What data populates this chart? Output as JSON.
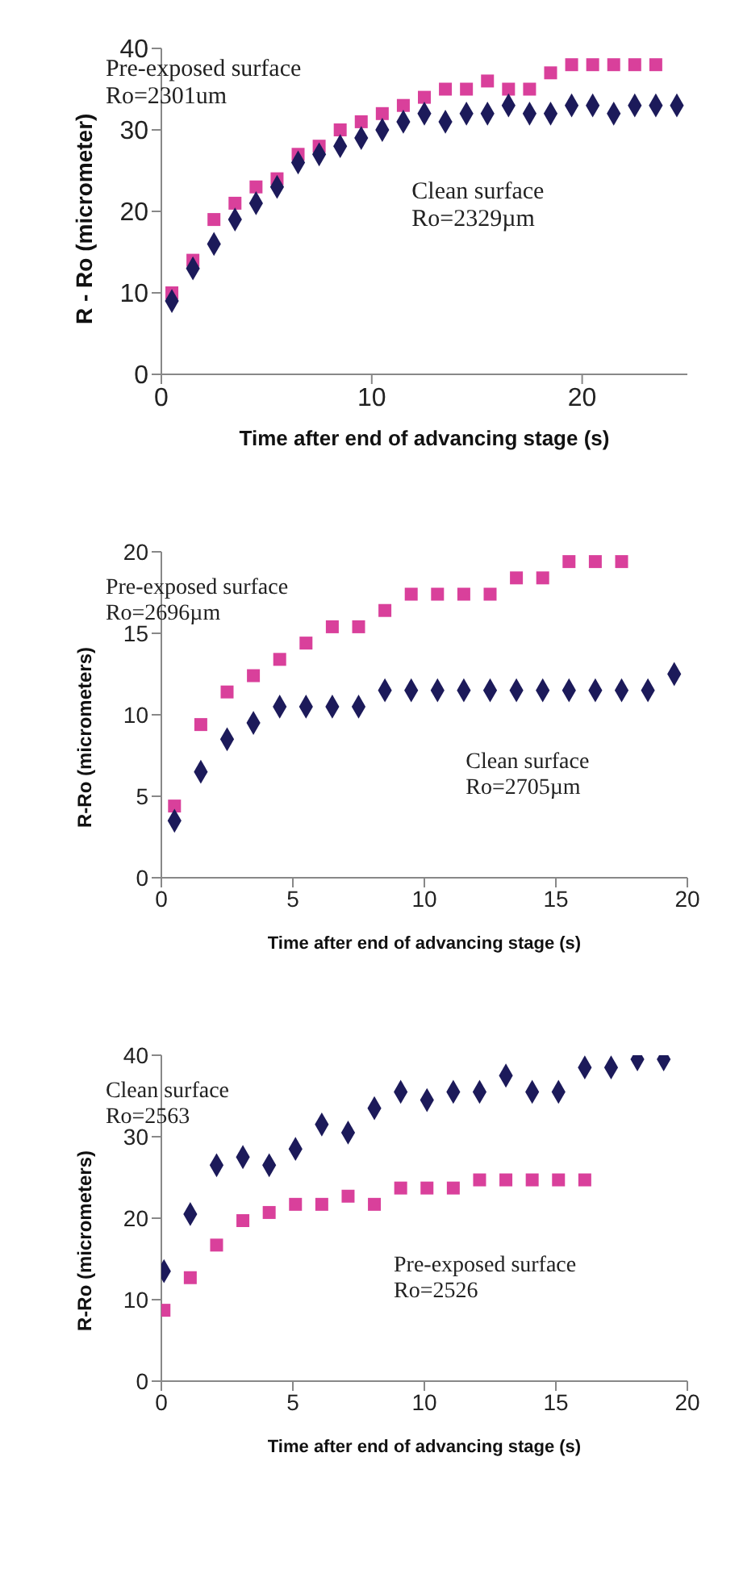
{
  "chart_data": [
    {
      "type": "scatter",
      "xlabel": "Time after end of advancing stage (s)",
      "ylabel": "R - Ro (micrometer)",
      "xlim": [
        0,
        25
      ],
      "xticks": [
        0,
        10,
        20
      ],
      "ylim": [
        0,
        40
      ],
      "yticks": [
        0,
        10,
        20,
        30,
        40
      ],
      "grid": false,
      "annotations": [
        "Ro=2301um",
        "Ro=2329µm"
      ],
      "series": [
        {
          "name": "Pre-exposed surface",
          "color": "#d9409b",
          "marker": "square",
          "x": [
            0.5,
            1.5,
            2.5,
            3.5,
            4.5,
            5.5,
            6.5,
            7.5,
            8.5,
            9.5,
            10.5,
            11.5,
            12.5,
            13.5,
            14.5,
            15.5,
            16.5,
            17.5,
            18.5,
            19.5,
            20.5,
            21.5,
            22.5,
            23.5
          ],
          "values": [
            10,
            14,
            19,
            21,
            23,
            24,
            27,
            28,
            30,
            31,
            32,
            33,
            34,
            35,
            35,
            36,
            35,
            35,
            37,
            38,
            38,
            38,
            38,
            38
          ]
        },
        {
          "name": "Clean surface",
          "color": "#1c1a5a",
          "marker": "diamond",
          "x": [
            0.5,
            1.5,
            2.5,
            3.5,
            4.5,
            5.5,
            6.5,
            7.5,
            8.5,
            9.5,
            10.5,
            11.5,
            12.5,
            13.5,
            14.5,
            15.5,
            16.5,
            17.5,
            18.5,
            19.5,
            20.5,
            21.5,
            22.5,
            23.5,
            24.5
          ],
          "values": [
            9,
            13,
            16,
            19,
            21,
            23,
            26,
            27,
            28,
            29,
            30,
            31,
            32,
            31,
            32,
            32,
            33,
            32,
            32,
            33,
            33,
            32,
            33,
            33,
            33
          ]
        }
      ]
    },
    {
      "type": "scatter",
      "xlabel": "Time after end of advancing stage (s)",
      "ylabel": "R-Ro (micrometers)",
      "xlim": [
        0,
        20
      ],
      "xticks": [
        0,
        5,
        10,
        15,
        20
      ],
      "ylim": [
        0,
        20
      ],
      "yticks": [
        0,
        5,
        10,
        15,
        20
      ],
      "grid": false,
      "annotations": [
        "Ro=2696µm",
        "Ro=2705µm"
      ],
      "series": [
        {
          "name": "Pre-exposed surface",
          "color": "#d9409b",
          "marker": "square",
          "x": [
            0.5,
            1.5,
            2.5,
            3.5,
            4.5,
            5.5,
            6.5,
            7.5,
            8.5,
            9.5,
            10.5,
            11.5,
            12.5,
            13.5,
            14.5,
            15.5,
            16.5,
            17.5
          ],
          "values": [
            4.4,
            9.4,
            11.4,
            12.4,
            13.4,
            14.4,
            15.4,
            15.4,
            16.4,
            17.4,
            17.4,
            17.4,
            17.4,
            18.4,
            18.4,
            19.4,
            19.4,
            19.4
          ]
        },
        {
          "name": "Clean surface",
          "color": "#1c1a5a",
          "marker": "diamond",
          "x": [
            0.5,
            1.5,
            2.5,
            3.5,
            4.5,
            5.5,
            6.5,
            7.5,
            8.5,
            9.5,
            10.5,
            11.5,
            12.5,
            13.5,
            14.5,
            15.5,
            16.5,
            17.5,
            18.5,
            19.5
          ],
          "values": [
            3.5,
            6.5,
            8.5,
            9.5,
            10.5,
            10.5,
            10.5,
            10.5,
            11.5,
            11.5,
            11.5,
            11.5,
            11.5,
            11.5,
            11.5,
            11.5,
            11.5,
            11.5,
            11.5,
            12.5
          ]
        }
      ]
    },
    {
      "type": "scatter",
      "xlabel": "Time after end of advancing stage (s)",
      "ylabel": "R-Ro (micrometers)",
      "xlim": [
        0,
        20
      ],
      "xticks": [
        0,
        5,
        10,
        15,
        20
      ],
      "ylim": [
        0,
        40
      ],
      "yticks": [
        0,
        10,
        20,
        30,
        40
      ],
      "grid": false,
      "annotations": [
        "Ro=2526",
        "Ro=2563"
      ],
      "series": [
        {
          "name": "Pre-exposed surface",
          "color": "#d9409b",
          "marker": "square",
          "x": [
            0.1,
            1.1,
            2.1,
            3.1,
            4.1,
            5.1,
            6.1,
            7.1,
            8.1,
            9.1,
            10.1,
            11.1,
            12.1,
            13.1,
            14.1,
            15.1,
            16.1
          ],
          "values": [
            8.7,
            12.7,
            16.7,
            19.7,
            20.7,
            21.7,
            21.7,
            22.7,
            21.7,
            23.7,
            23.7,
            23.7,
            24.7,
            24.7,
            24.7,
            24.7,
            24.7
          ]
        },
        {
          "name": "Clean surface",
          "color": "#1c1a5a",
          "marker": "diamond",
          "x": [
            0.1,
            1.1,
            2.1,
            3.1,
            4.1,
            5.1,
            6.1,
            7.1,
            8.1,
            9.1,
            10.1,
            11.1,
            12.1,
            13.1,
            14.1,
            15.1,
            16.1,
            17.1,
            18.1,
            19.1
          ],
          "values": [
            13.5,
            20.5,
            26.5,
            27.5,
            26.5,
            28.5,
            31.5,
            30.5,
            33.5,
            35.5,
            34.5,
            35.5,
            35.5,
            37.5,
            35.5,
            35.5,
            38.5,
            38.5,
            39.5,
            39.5
          ]
        }
      ]
    }
  ]
}
